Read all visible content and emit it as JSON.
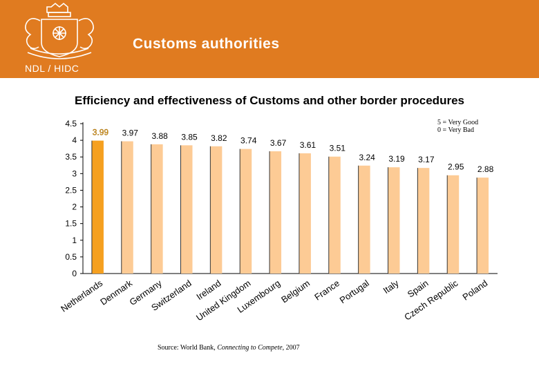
{
  "header": {
    "title": "Customs authorities",
    "logo_text": "NDL / HIDC"
  },
  "legend": {
    "line1": "5 = Very Good",
    "line2": "0 = Very Bad"
  },
  "source": {
    "prefix": "Source: World Bank, ",
    "italic": "Connecting to Compete",
    "suffix": ", 2007"
  },
  "colors": {
    "header": "#E07B20",
    "highlight": "#F5A020",
    "bar": "#FDCB95"
  },
  "chart_data": {
    "type": "bar",
    "title": "Efficiency and effectiveness of Customs and other border procedures",
    "categories": [
      "Netherlands",
      "Denmark",
      "Germany",
      "Switzerland",
      "Ireland",
      "United Kingdom",
      "Luxembourg",
      "Belgium",
      "France",
      "Portugal",
      "Italy",
      "Spain",
      "Czech Republic",
      "Poland"
    ],
    "values": [
      3.99,
      3.97,
      3.88,
      3.85,
      3.82,
      3.74,
      3.67,
      3.61,
      3.51,
      3.24,
      3.19,
      3.17,
      2.95,
      2.88
    ],
    "value_labels": [
      "3.99",
      "3.97",
      "3.88",
      "3.85",
      "3.82",
      "3.74",
      "3.67",
      "3.61",
      "3.51",
      "3.24",
      "3.19",
      "3.17",
      "2.95",
      "2.88"
    ],
    "ylim": [
      0,
      4.5
    ],
    "yticks": [
      "0",
      "0.5",
      "1",
      "1.5",
      "2",
      "2.5",
      "3",
      "3.5",
      "4",
      "4.5"
    ],
    "highlight_index": 0,
    "grid": false
  }
}
